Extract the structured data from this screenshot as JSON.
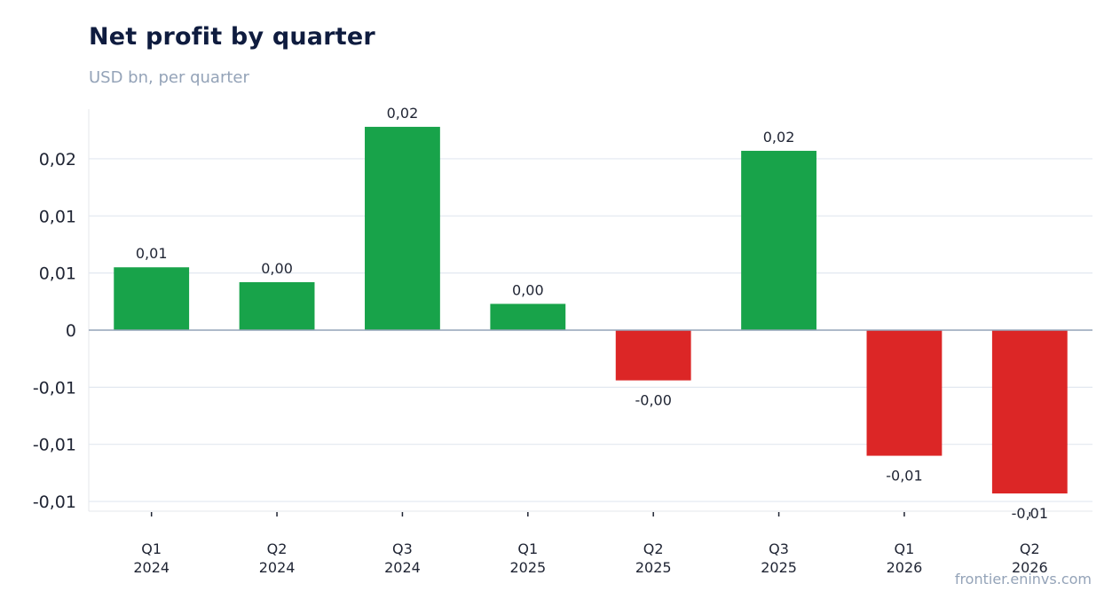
{
  "title": "Net profit by quarter",
  "subtitle": "USD bn, per quarter",
  "source": "frontier.eninvs.com",
  "chart_data": {
    "type": "bar",
    "categories": [
      [
        "Q1",
        "2024"
      ],
      [
        "Q2",
        "2024"
      ],
      [
        "Q3",
        "2024"
      ],
      [
        "Q1",
        "2025"
      ],
      [
        "Q2",
        "2025"
      ],
      [
        "Q3",
        "2025"
      ],
      [
        "Q1",
        "2026"
      ],
      [
        "Q2",
        "2026"
      ]
    ],
    "values": [
      0.0055,
      0.0042,
      0.0178,
      0.0023,
      -0.0044,
      0.0157,
      -0.011,
      -0.0143
    ],
    "data_labels": [
      "0,01",
      "0,00",
      "0,02",
      "0,00",
      "-0,00",
      "0,02",
      "-0,01",
      "-0,01"
    ],
    "ylim": [
      -0.016,
      0.0195
    ],
    "yticks": [
      0.015,
      0.01,
      0.005,
      0,
      -0.005,
      -0.01,
      -0.015
    ],
    "ytick_labels": [
      "0,02",
      "0,01",
      "0,01",
      "0",
      "-0,01",
      "-0,01",
      "-0,01"
    ],
    "grid": true,
    "colors": {
      "positive": "#18a34a",
      "negative": "#dc2626",
      "grid": "#e2e8f0",
      "zero": "#94a3b8"
    }
  }
}
